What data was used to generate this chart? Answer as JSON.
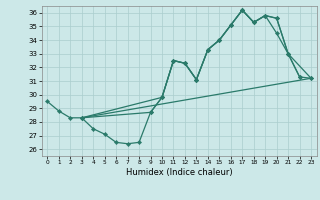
{
  "xlabel": "Humidex (Indice chaleur)",
  "xlim": [
    -0.5,
    23.5
  ],
  "ylim": [
    25.5,
    36.5
  ],
  "xticks": [
    0,
    1,
    2,
    3,
    4,
    5,
    6,
    7,
    8,
    9,
    10,
    11,
    12,
    13,
    14,
    15,
    16,
    17,
    18,
    19,
    20,
    21,
    22,
    23
  ],
  "yticks": [
    26,
    27,
    28,
    29,
    30,
    31,
    32,
    33,
    34,
    35,
    36
  ],
  "bg_color": "#cce8e8",
  "grid_color": "#aacece",
  "line_color": "#2a7a6a",
  "line1_x": [
    0,
    1,
    2,
    3,
    4,
    5,
    6,
    7,
    8,
    9,
    10,
    11,
    12,
    13,
    14,
    15,
    16,
    17,
    18,
    19,
    20,
    21,
    22
  ],
  "line1_y": [
    29.5,
    28.8,
    28.3,
    28.3,
    27.5,
    27.1,
    26.5,
    26.4,
    26.5,
    28.7,
    29.8,
    32.5,
    32.3,
    31.1,
    33.3,
    34.0,
    35.1,
    36.2,
    35.3,
    35.8,
    34.5,
    33.0,
    31.3
  ],
  "line2_x": [
    3,
    10,
    11,
    12,
    13,
    14,
    15,
    16,
    17,
    18,
    19,
    20,
    21,
    23
  ],
  "line2_y": [
    28.3,
    29.8,
    32.5,
    32.3,
    31.1,
    33.3,
    34.0,
    35.1,
    36.2,
    35.3,
    35.8,
    35.6,
    33.0,
    31.2
  ],
  "line3_x": [
    3,
    23
  ],
  "line3_y": [
    28.3,
    31.2
  ],
  "line4_x": [
    3,
    9,
    10,
    11,
    12,
    13,
    14,
    15,
    16,
    17,
    18,
    19,
    20,
    21,
    22,
    23
  ],
  "line4_y": [
    28.3,
    28.7,
    29.8,
    32.5,
    32.3,
    31.1,
    33.3,
    34.0,
    35.1,
    36.2,
    35.3,
    35.8,
    35.6,
    33.0,
    31.3,
    31.2
  ]
}
